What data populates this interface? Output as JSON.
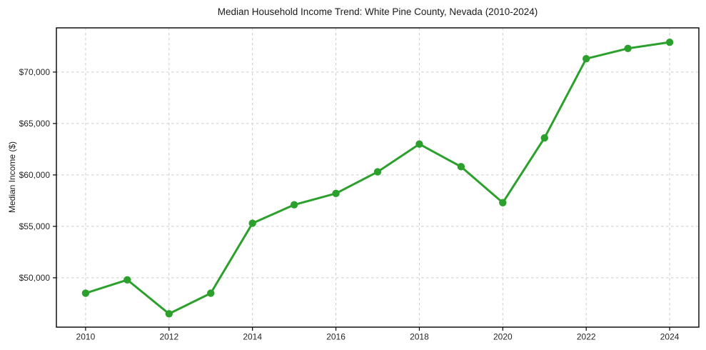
{
  "chart_data": {
    "type": "line",
    "title": "Median Household Income Trend: White Pine County, Nevada (2010-2024)",
    "xlabel": "",
    "ylabel": "Median Income ($)",
    "series_name": "Median Household Income",
    "x": [
      2010,
      2011,
      2012,
      2013,
      2014,
      2015,
      2016,
      2017,
      2018,
      2019,
      2020,
      2021,
      2022,
      2023,
      2024
    ],
    "values": [
      48500,
      49800,
      46500,
      48500,
      55300,
      57100,
      58200,
      60300,
      63000,
      60800,
      57300,
      63600,
      71300,
      72300,
      72900
    ],
    "x_ticks": [
      2010,
      2012,
      2014,
      2016,
      2018,
      2020,
      2022,
      2024
    ],
    "x_tick_labels": [
      "2010",
      "2012",
      "2014",
      "2016",
      "2018",
      "2020",
      "2022",
      "2024"
    ],
    "y_ticks": [
      50000,
      55000,
      60000,
      65000,
      70000
    ],
    "y_tick_labels": [
      "$50,000",
      "$55,000",
      "$60,000",
      "$65,000",
      "$70,000"
    ],
    "xlim": [
      2009.3,
      2024.7
    ],
    "ylim": [
      45200,
      74300
    ],
    "grid": true,
    "grid_style": "dashed",
    "legend_position": "none",
    "line_color": "#2ca02c",
    "marker": "circle",
    "marker_color": "#2ca02c",
    "grid_color": "#cccccc",
    "spine_color": "#000000",
    "tick_text_color": "#262626"
  }
}
